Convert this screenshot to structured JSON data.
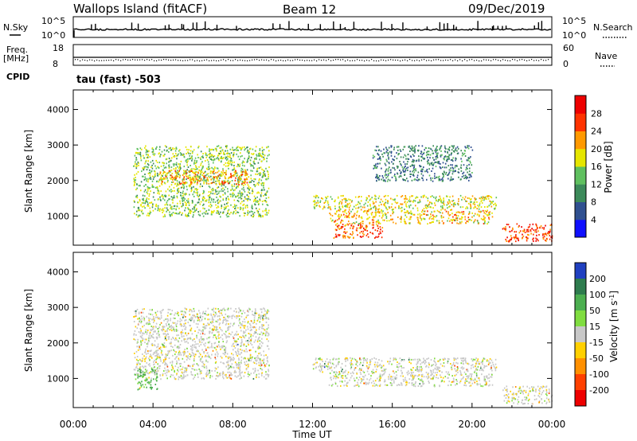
{
  "header": {
    "station": "Wallops Island (fitACF)",
    "beam": "Beam 12",
    "date": "09/Dec/2019"
  },
  "strip_labels": {
    "nsky": "N.Sky",
    "nsearch": "N.Search",
    "freq_line1": "Freq.",
    "freq_line2": "[MHz]",
    "nave": "Nave",
    "cpid": "CPID",
    "cpid_value": "tau (fast) -503",
    "noise_top_left": "10^5",
    "noise_bottom_left": "10^0",
    "noise_top_right": "10^5",
    "noise_bottom_right": "10^0",
    "freq_top": "18",
    "freq_bottom": "8",
    "nave_top": "60",
    "nave_bottom": "0"
  },
  "chart_data": [
    {
      "type": "heatmap",
      "name": "power",
      "ylabel": "Slant Range [km]",
      "ylim": [
        180,
        4550
      ],
      "yticks": [
        1000,
        2000,
        3000,
        4000
      ],
      "xlim": [
        0,
        24
      ],
      "colorbar_label": "Power [dB]",
      "colorbar_ticks": [
        "4",
        "8",
        "12",
        "16",
        "20",
        "24",
        "28"
      ],
      "colorbar_range": [
        0,
        30
      ],
      "colors": [
        "#1010ff",
        "#305090",
        "#3c8a5a",
        "#5fc05f",
        "#e6e600",
        "#ff9900",
        "#ff3300",
        "#ee0000"
      ],
      "echo_regions": [
        {
          "t0": 3.0,
          "t1": 9.8,
          "r0": 1000,
          "r1": 3000,
          "power": 15
        },
        {
          "t0": 4.3,
          "t1": 8.8,
          "r0": 1900,
          "r1": 2300,
          "power": 22
        },
        {
          "t0": 12.0,
          "t1": 21.2,
          "r0": 1200,
          "r1": 1600,
          "power": 18
        },
        {
          "t0": 12.8,
          "t1": 21.0,
          "r0": 800,
          "r1": 1200,
          "power": 20
        },
        {
          "t0": 13.0,
          "t1": 15.5,
          "r0": 400,
          "r1": 800,
          "power": 24
        },
        {
          "t0": 21.5,
          "t1": 24.0,
          "r0": 300,
          "r1": 800,
          "power": 26
        },
        {
          "t0": 15.0,
          "t1": 20.0,
          "r0": 2000,
          "r1": 3000,
          "power": 9
        }
      ]
    },
    {
      "type": "heatmap",
      "name": "velocity",
      "ylabel": "Slant Range [km]",
      "ylim": [
        180,
        4550
      ],
      "yticks": [
        1000,
        2000,
        3000,
        4000
      ],
      "xlim": [
        0,
        24
      ],
      "xticks": [
        "00:00",
        "04:00",
        "08:00",
        "12:00",
        "16:00",
        "20:00",
        "00:00"
      ],
      "xlabel": "Time UT",
      "colorbar_label": "Velocity [m s^-1]",
      "colorbar_ticks": [
        "200",
        "100",
        "50",
        "15",
        "-15",
        "-50",
        "-100",
        "-200"
      ],
      "colors": [
        "#2040c0",
        "#2e7c4e",
        "#4caf50",
        "#80dd40",
        "#c8c8c8",
        "#ffd000",
        "#ff9000",
        "#ff4000",
        "#ee0000"
      ],
      "echo_regions": [
        {
          "t0": 3.0,
          "t1": 9.8,
          "r0": 1000,
          "r1": 3000,
          "velocity": 0
        },
        {
          "t0": 3.2,
          "t1": 4.2,
          "r0": 700,
          "r1": 1300,
          "velocity": 40
        },
        {
          "t0": 12.0,
          "t1": 21.2,
          "r0": 1200,
          "r1": 1600,
          "velocity": 0
        },
        {
          "t0": 12.8,
          "t1": 21.0,
          "r0": 800,
          "r1": 1200,
          "velocity": 0
        },
        {
          "t0": 21.5,
          "t1": 24.0,
          "r0": 300,
          "r1": 800,
          "velocity": 0
        }
      ]
    }
  ]
}
